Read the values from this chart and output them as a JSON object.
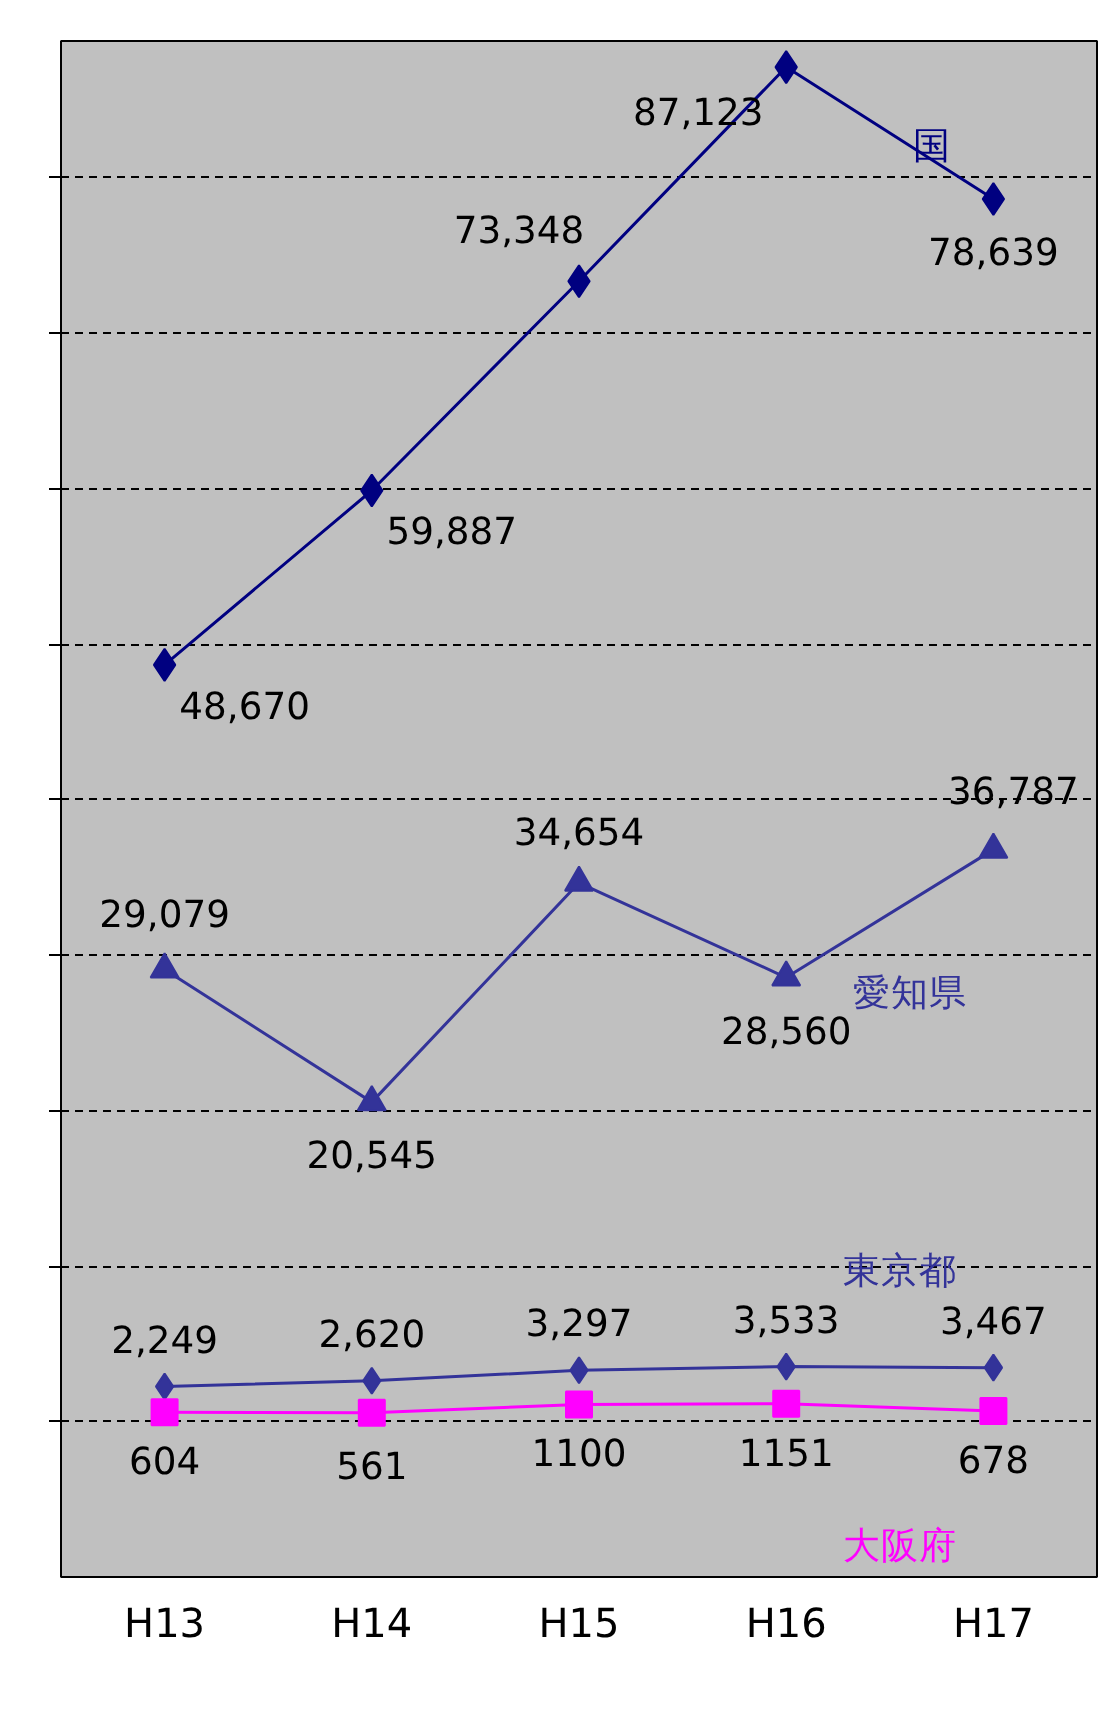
{
  "chart_data": {
    "type": "line",
    "categories": [
      "H13",
      "H14",
      "H15",
      "H16",
      "H17"
    ],
    "series": [
      {
        "name": "国",
        "color": "#000080",
        "marker": "diamond",
        "values": [
          48670,
          59887,
          73348,
          87123,
          78639
        ],
        "value_labels": [
          "48,670",
          "59,887",
          "73,348",
          "87,123",
          "78,639"
        ]
      },
      {
        "name": "愛知県",
        "color": "#333399",
        "marker": "triangle",
        "values": [
          29079,
          20545,
          34654,
          28560,
          36787
        ],
        "value_labels": [
          "29,079",
          "20,545",
          "34,654",
          "28,560",
          "36,787"
        ]
      },
      {
        "name": "東京都",
        "color": "#333399",
        "marker": "diamond",
        "values": [
          2249,
          2620,
          3297,
          3533,
          3467
        ],
        "value_labels": [
          "2,249",
          "2,620",
          "3,297",
          "3,533",
          "3,467"
        ]
      },
      {
        "name": "大阪府",
        "color": "#ff00ff",
        "marker": "square",
        "values": [
          604,
          561,
          1100,
          1151,
          678
        ],
        "value_labels": [
          "604",
          "561",
          "1100",
          "1151",
          "678"
        ]
      }
    ],
    "ylim": [
      -10000,
      88800
    ],
    "yticks": [
      {
        "value": 0,
        "label": null
      },
      {
        "value": 10000,
        "label": null
      },
      {
        "value": 20000,
        "label": null
      },
      {
        "value": 30000,
        "label": null
      },
      {
        "value": 40000,
        "label": null
      },
      {
        "value": 50000,
        "label": null
      },
      {
        "value": 60000,
        "label": null
      },
      {
        "value": 70000,
        "label": null
      },
      {
        "value": 80000,
        "label": null
      }
    ],
    "tick_labels": "x",
    "grid": "y",
    "legend": false,
    "line_style": "solid"
  }
}
